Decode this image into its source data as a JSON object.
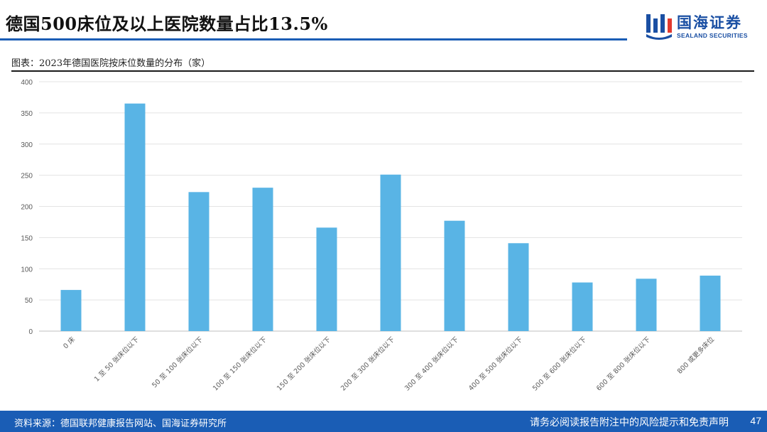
{
  "slide": {
    "title": "德国500床位及以上医院数量占比13.5%",
    "caption": "图表：2023年德国医院按床位数量的分布（家）",
    "page_number": "47"
  },
  "logo": {
    "name_cn": "国海证券",
    "name_en": "SEALAND SECURITIES"
  },
  "footer": {
    "source": "资料来源：德国联邦健康报告网站、国海证券研究所",
    "disclaimer": "请务必阅读报告附注中的风险提示和免责声明"
  },
  "colors": {
    "accent": "#1a5db5",
    "bar": "#59b4e5"
  },
  "chart_data": {
    "type": "bar",
    "title": "",
    "xlabel": "",
    "ylabel": "",
    "ylim": [
      0,
      400
    ],
    "yticks": [
      0,
      50,
      100,
      150,
      200,
      250,
      300,
      350,
      400
    ],
    "grid": true,
    "categories": [
      "0 床",
      "1 至 50 张床位以下",
      "50 至 100 张床位以下",
      "100 至 150 张床位以下",
      "150 至 200 张床位以下",
      "200 至 300 张床位以下",
      "300 至 400 张床位以下",
      "400 至 500 张床位以下",
      "500 至 600 张床位以下",
      "600 至 800 张床位以下",
      "800 或更多床位"
    ],
    "values": [
      66,
      365,
      223,
      230,
      166,
      251,
      177,
      141,
      78,
      84,
      89
    ]
  }
}
